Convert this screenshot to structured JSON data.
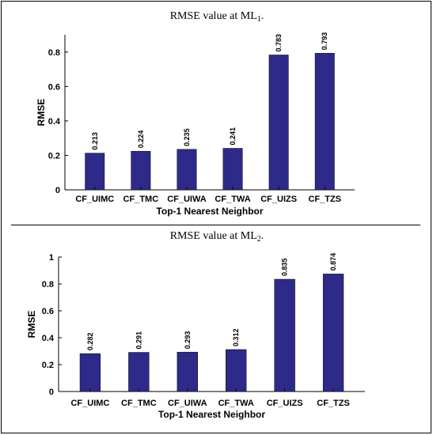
{
  "panels": [
    {
      "title_prefix": "RMSE value at ML",
      "title_sub": "1",
      "title_suffix": ".",
      "chart_data": {
        "type": "bar",
        "categories": [
          "CF_UIMC",
          "CF_TMC",
          "CF_UIWA",
          "CF_TWA",
          "CF_UIZS",
          "CF_TZS"
        ],
        "values": [
          0.213,
          0.224,
          0.235,
          0.241,
          0.783,
          0.793
        ],
        "value_labels": [
          "0.213",
          "0.224",
          "0.235",
          "0.241",
          "0.783",
          "0.793"
        ],
        "xlabel": "Top-1 Nearest Neighbor",
        "ylabel": "RMSE",
        "ylim": [
          0,
          0.9
        ],
        "yticks": [
          0,
          0.2,
          0.4,
          0.6,
          0.8
        ],
        "ytick_labels": [
          "0",
          "0.2",
          "0.4",
          "0.6",
          "0.8"
        ],
        "bar_color": "#2e2a8a"
      }
    },
    {
      "title_prefix": "RMSE value at ML",
      "title_sub": "2",
      "title_suffix": ".",
      "chart_data": {
        "type": "bar",
        "categories": [
          "CF_UIMC",
          "CF_TMC",
          "CF_UIWA",
          "CF_TWA",
          "CF_UIZS",
          "CF_TZS"
        ],
        "values": [
          0.282,
          0.291,
          0.293,
          0.312,
          0.835,
          0.874
        ],
        "value_labels": [
          "0.282",
          "0.291",
          "0.293",
          "0.312",
          "0.835",
          "0.874"
        ],
        "xlabel": "Top-1 Nearest Neighbor",
        "ylabel": "RMSE",
        "ylim": [
          0,
          1
        ],
        "yticks": [
          0,
          0.2,
          0.4,
          0.6,
          0.8,
          1
        ],
        "ytick_labels": [
          "0",
          "0.2",
          "0.4",
          "0.6",
          "0.8",
          "1"
        ],
        "bar_color": "#2e2a8a"
      }
    }
  ]
}
